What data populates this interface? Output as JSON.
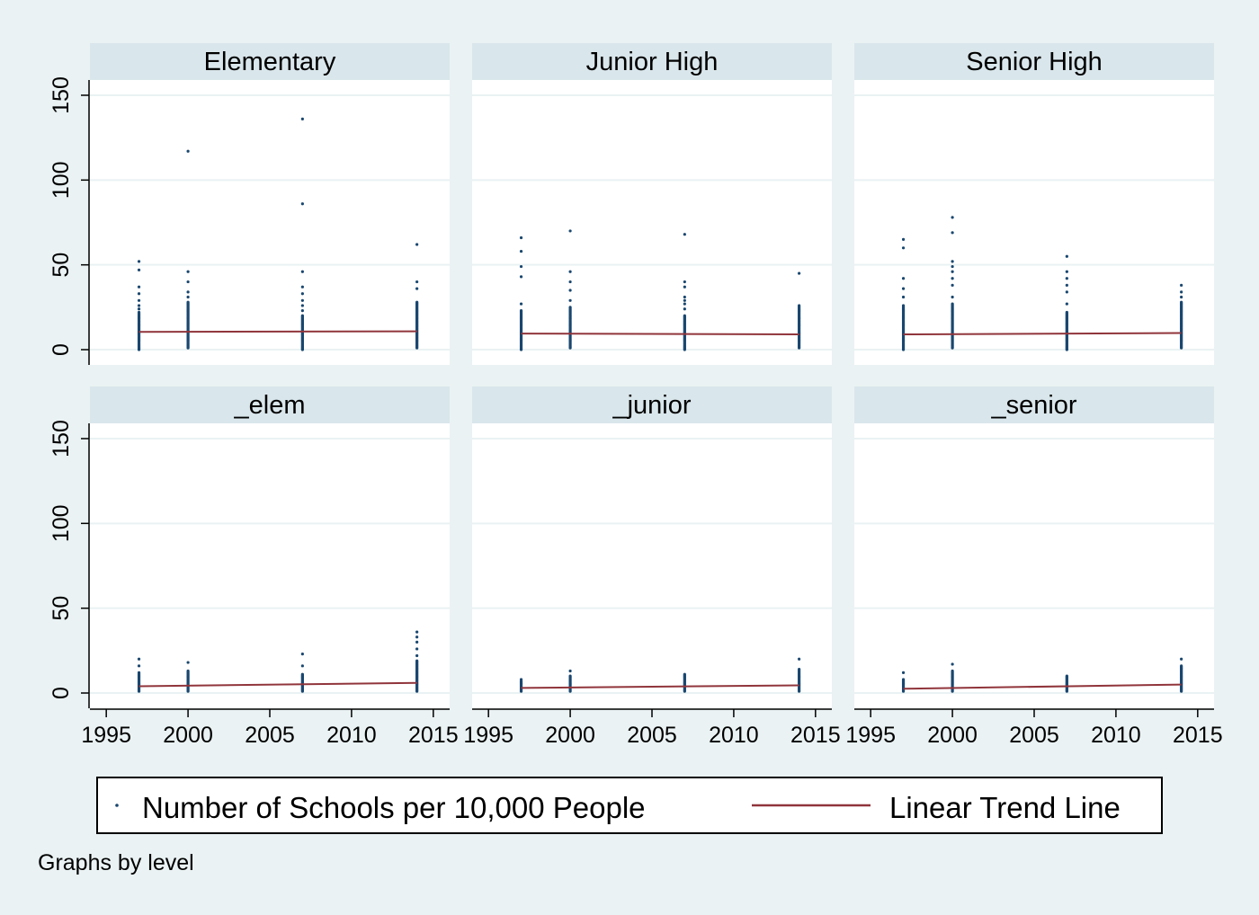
{
  "chart_data": {
    "type": "scatter",
    "subplots_layout": "2x3",
    "x_ticks": [
      1995,
      2000,
      2005,
      2010,
      2015
    ],
    "y_ticks": [
      0,
      50,
      100,
      150
    ],
    "xlim": [
      1994,
      2016
    ],
    "ylim": [
      -9,
      159
    ],
    "grid": true,
    "legend_position": "bottom",
    "legend": [
      {
        "label": "Number of Schools per 10,000 People",
        "marker": "point",
        "color": "#1a476f"
      },
      {
        "label": "Linear Trend Line",
        "marker": "line",
        "color": "#90353b"
      }
    ],
    "note": "Graphs by level",
    "series_colors": {
      "points": "#1a476f",
      "trend": "#90353b"
    },
    "panels": [
      {
        "title": "Elementary",
        "trend": [
          [
            1997,
            10.5
          ],
          [
            2014,
            10.8
          ]
        ],
        "points": [
          {
            "x": 1997,
            "min": 0,
            "max": 22,
            "outliers": [
              24,
              26,
              29,
              33,
              37,
              47,
              52
            ]
          },
          {
            "x": 2000,
            "min": 1,
            "max": 28,
            "outliers": [
              31,
              34,
              40,
              46,
              117
            ]
          },
          {
            "x": 2007,
            "min": 0,
            "max": 20,
            "outliers": [
              23,
              26,
              29,
              33,
              37,
              46,
              86,
              136
            ]
          },
          {
            "x": 2014,
            "min": 1,
            "max": 28,
            "outliers": [
              36,
              40,
              62
            ]
          }
        ]
      },
      {
        "title": "Junior High",
        "trend": [
          [
            1997,
            9.5
          ],
          [
            2014,
            9
          ]
        ],
        "points": [
          {
            "x": 1997,
            "min": 0,
            "max": 23,
            "outliers": [
              27,
              43,
              49,
              58,
              66
            ]
          },
          {
            "x": 2000,
            "min": 1,
            "max": 25,
            "outliers": [
              29,
              35,
              40,
              46,
              70
            ]
          },
          {
            "x": 2007,
            "min": 0,
            "max": 20,
            "outliers": [
              24,
              27,
              29,
              31,
              37,
              40,
              68
            ]
          },
          {
            "x": 2014,
            "min": 1,
            "max": 26,
            "outliers": [
              45
            ]
          }
        ]
      },
      {
        "title": "Senior High",
        "trend": [
          [
            1997,
            9
          ],
          [
            2014,
            9.8
          ]
        ],
        "points": [
          {
            "x": 1997,
            "min": 0,
            "max": 26,
            "outliers": [
              31,
              36,
              42,
              60,
              65
            ]
          },
          {
            "x": 2000,
            "min": 1,
            "max": 27,
            "outliers": [
              31,
              38,
              42,
              46,
              49,
              52,
              69,
              78
            ]
          },
          {
            "x": 2007,
            "min": 0,
            "max": 22,
            "outliers": [
              27,
              34,
              38,
              42,
              46,
              55
            ]
          },
          {
            "x": 2014,
            "min": 1,
            "max": 28,
            "outliers": [
              31,
              34,
              38
            ]
          }
        ]
      },
      {
        "title": "_elem",
        "trend": [
          [
            1997,
            4
          ],
          [
            2014,
            6
          ]
        ],
        "points": [
          {
            "x": 1997,
            "min": 1,
            "max": 12,
            "outliers": [
              16,
              20
            ]
          },
          {
            "x": 2000,
            "min": 1,
            "max": 13,
            "outliers": [
              18
            ]
          },
          {
            "x": 2007,
            "min": 1,
            "max": 11,
            "outliers": [
              16,
              23
            ]
          },
          {
            "x": 2014,
            "min": 1,
            "max": 19,
            "outliers": [
              22,
              26,
              30,
              33,
              36
            ]
          }
        ]
      },
      {
        "title": "_junior",
        "trend": [
          [
            1997,
            3
          ],
          [
            2014,
            4.5
          ]
        ],
        "points": [
          {
            "x": 1997,
            "min": 1,
            "max": 7,
            "outliers": [
              8
            ]
          },
          {
            "x": 2000,
            "min": 1,
            "max": 10,
            "outliers": [
              13
            ]
          },
          {
            "x": 2007,
            "min": 1,
            "max": 11,
            "outliers": []
          },
          {
            "x": 2014,
            "min": 1,
            "max": 14,
            "outliers": [
              20
            ]
          }
        ]
      },
      {
        "title": "_senior",
        "trend": [
          [
            1997,
            2.5
          ],
          [
            2014,
            5
          ]
        ],
        "points": [
          {
            "x": 1997,
            "min": 1,
            "max": 8,
            "outliers": [
              12
            ]
          },
          {
            "x": 2000,
            "min": 1,
            "max": 13,
            "outliers": [
              17
            ]
          },
          {
            "x": 2007,
            "min": 1,
            "max": 10,
            "outliers": []
          },
          {
            "x": 2014,
            "min": 1,
            "max": 16,
            "outliers": [
              20
            ]
          }
        ]
      }
    ]
  }
}
